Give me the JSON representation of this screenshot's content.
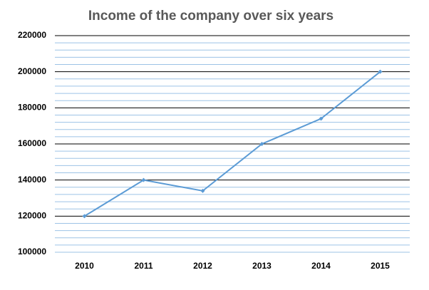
{
  "chart_data": {
    "type": "line",
    "title": "Income of the company over six years",
    "categories": [
      "2010",
      "2011",
      "2012",
      "2013",
      "2014",
      "2015"
    ],
    "values": [
      120000,
      140000,
      134000,
      160000,
      174000,
      200000
    ],
    "color": "#5b9bd5",
    "ylim": [
      100000,
      220000
    ],
    "yticks": [
      100000,
      120000,
      140000,
      160000,
      180000,
      200000,
      220000
    ],
    "grid": true,
    "minor_grid_color": "#9dc3e6"
  }
}
